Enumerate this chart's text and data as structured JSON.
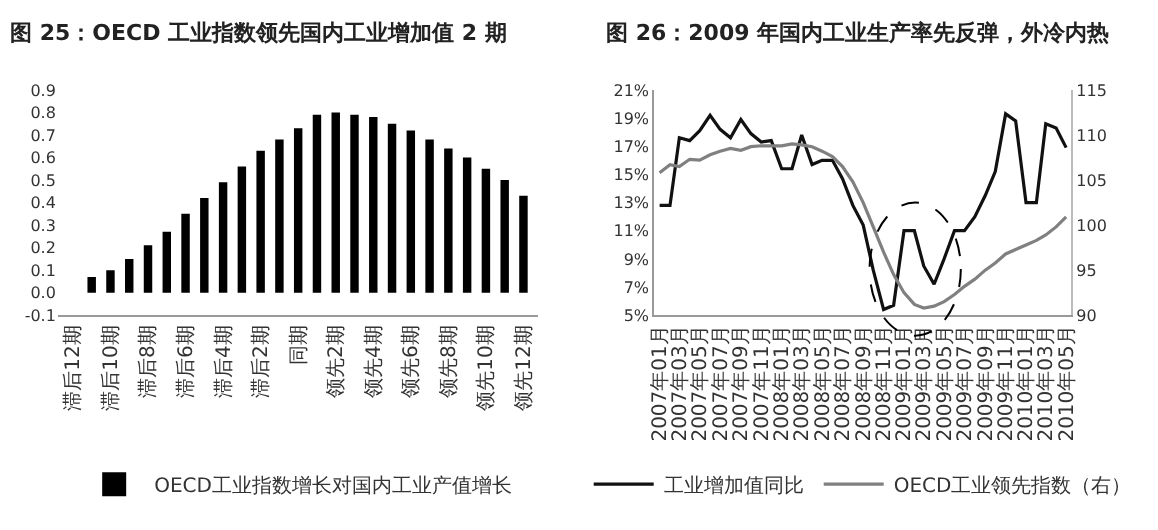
{
  "chart_data": [
    {
      "type": "bar",
      "title": "图 25：OECD 工业指数领先国内工业增加值 2 期",
      "categories": [
        "滞后12期",
        null,
        "滞后10期",
        null,
        "滞后8期",
        null,
        "滞后6期",
        null,
        "滞后4期",
        null,
        "滞后2期",
        null,
        "同期",
        null,
        "领先2期",
        null,
        "领先4期",
        null,
        "领先6期",
        null,
        "领先8期",
        null,
        "领先10期",
        null,
        "领先12期"
      ],
      "series": [
        {
          "name": "OECD工业指数增长对国内工业产值增长",
          "color": "#000000",
          "values": [
            0,
            0.07,
            0.1,
            0.15,
            0.21,
            0.27,
            0.35,
            0.42,
            0.49,
            0.56,
            0.63,
            0.68,
            0.73,
            0.79,
            0.8,
            0.79,
            0.78,
            0.75,
            0.72,
            0.68,
            0.64,
            0.6,
            0.55,
            0.5,
            0.43
          ]
        }
      ],
      "ylim": [
        -0.1,
        0.9
      ],
      "yticks": [
        -0.1,
        {
          "value": 0,
          "label": "0.0"
        },
        0.1,
        0.2,
        0.3,
        0.4,
        0.5,
        0.6,
        0.7,
        0.8,
        0.9
      ],
      "legend": "bottom"
    },
    {
      "type": "line",
      "title": "图 26：2009 年国内工业生产率先反弹，外冷内热",
      "x": [
        "2007-01",
        "2007-02",
        "2007-03",
        "2007-04",
        "2007-05",
        "2007-06",
        "2007-07",
        "2007-08",
        "2007-09",
        "2007-10",
        "2007-11",
        "2007-12",
        "2008-01",
        "2008-02",
        "2008-03",
        "2008-04",
        "2008-05",
        "2008-06",
        "2008-07",
        "2008-08",
        "2008-09",
        "2008-10",
        "2008-11",
        "2008-12",
        "2009-01",
        "2009-02",
        "2009-03",
        "2009-04",
        "2009-05",
        "2009-06",
        "2009-07",
        "2009-08",
        "2009-09",
        "2009-10",
        "2009-11",
        "2009-12",
        "2010-01",
        "2010-02",
        "2010-03",
        "2010-04",
        "2010-05"
      ],
      "series": [
        {
          "name": "工业增加值同比",
          "color": "#111111",
          "values": [
            12.8,
            12.8,
            17.6,
            17.4,
            18.1,
            19.2,
            18.2,
            17.6,
            18.9,
            17.9,
            17.3,
            17.4,
            15.4,
            15.4,
            17.8,
            15.7,
            16.0,
            16.0,
            14.7,
            12.8,
            11.4,
            8.2,
            5.4,
            5.7,
            11.0,
            11.0,
            8.5,
            7.2,
            9.0,
            11.0,
            11.0,
            12.0,
            13.5,
            15.2,
            19.3,
            18.8,
            13.0,
            13.0,
            18.6,
            18.3,
            16.9
          ]
        },
        {
          "name": "OECD工业领先指数（右）",
          "color": "#808080",
          "axis": "y2",
          "values": [
            105.8,
            106.7,
            106.5,
            107.3,
            107.2,
            107.8,
            108.2,
            108.5,
            108.3,
            108.7,
            108.8,
            108.8,
            108.8,
            109.0,
            108.9,
            108.7,
            108.2,
            107.6,
            106.5,
            104.8,
            102.5,
            99.8,
            97.0,
            94.5,
            92.5,
            91.2,
            90.8,
            91.0,
            91.5,
            92.3,
            93.2,
            94.0,
            95.0,
            95.8,
            96.8,
            97.3,
            97.8,
            98.3,
            98.9,
            99.8,
            100.9
          ]
        }
      ],
      "xlim": [
        "2006-12-16",
        "2010-05-16"
      ],
      "xticks": [
        {
          "value": "2007-01",
          "label": "2007年01月"
        },
        {
          "value": "2007-03",
          "label": "2007年03月"
        },
        {
          "value": "2007-05",
          "label": "2007年05月"
        },
        {
          "value": "2007-07",
          "label": "2007年07月"
        },
        {
          "value": "2007-09",
          "label": "2007年09月"
        },
        {
          "value": "2007-11",
          "label": "2007年11月"
        },
        {
          "value": "2008-01",
          "label": "2008年01月"
        },
        {
          "value": "2008-03",
          "label": "2008年03月"
        },
        {
          "value": "2008-05",
          "label": "2008年05月"
        },
        {
          "value": "2008-07",
          "label": "2008年07月"
        },
        {
          "value": "2008-09",
          "label": "2008年09月"
        },
        {
          "value": "2008-11",
          "label": "2008年11月"
        },
        {
          "value": "2009-01",
          "label": "2009年01月"
        },
        {
          "value": "2009-03",
          "label": "2009年03月"
        },
        {
          "value": "2009-05",
          "label": "2009年05月"
        },
        {
          "value": "2009-07",
          "label": "2009年07月"
        },
        {
          "value": "2009-09",
          "label": "2009年09月"
        },
        {
          "value": "2009-11",
          "label": "2009年11月"
        },
        {
          "value": "2010-01",
          "label": "2010年01月"
        },
        {
          "value": "2010-03",
          "label": "2010年03月"
        },
        {
          "value": "2010-05",
          "label": "2010年05月"
        }
      ],
      "ylim": [
        5,
        21
      ],
      "yticks": [
        {
          "value": 5,
          "label": "5%"
        },
        {
          "value": 7,
          "label": "7%"
        },
        {
          "value": 9,
          "label": "9%"
        },
        {
          "value": 11,
          "label": "11%"
        },
        {
          "value": 13,
          "label": "13%"
        },
        {
          "value": 15,
          "label": "15%"
        },
        {
          "value": 17,
          "label": "17%"
        },
        {
          "value": 19,
          "label": "19%"
        },
        {
          "value": 21,
          "label": "21%"
        }
      ],
      "y2lim": [
        90,
        115
      ],
      "y2ticks": [
        90,
        95,
        100,
        105,
        110,
        115
      ],
      "legend": "bottom",
      "marker": "none",
      "line_style": "solid"
    }
  ]
}
